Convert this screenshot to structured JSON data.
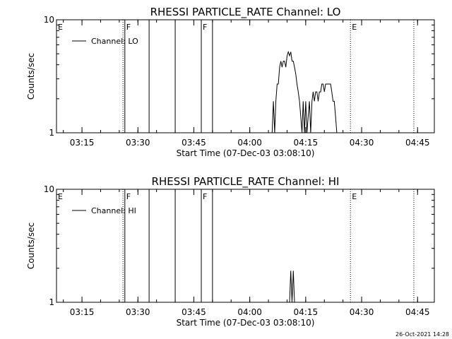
{
  "footer_timestamp": "26-Oct-2021 14:28",
  "chart_data": [
    {
      "type": "line",
      "title": "RHESSI PARTICLE_RATE Channel: LO",
      "xlabel": "Start Time (07-Dec-03 03:08:10)",
      "ylabel": "Counts/sec",
      "yscale": "log",
      "ylim": [
        1,
        10
      ],
      "yticks": [
        {
          "value": 1,
          "label": "1"
        },
        {
          "value": 10,
          "label": "10"
        }
      ],
      "xlim": [
        "03:08:10",
        "04:49:30"
      ],
      "xticks": [
        "03:15",
        "03:30",
        "03:45",
        "04:00",
        "04:15",
        "04:30",
        "04:45"
      ],
      "legend": {
        "position": "top-left",
        "entries": [
          "Channel: LO"
        ]
      },
      "markers": [
        {
          "time": "03:08:10",
          "label": "E",
          "style": "solid"
        },
        {
          "time": "03:26:00",
          "label": "",
          "style": "dotted"
        },
        {
          "time": "03:26:30",
          "label": "F",
          "style": "solid"
        },
        {
          "time": "03:33:00",
          "label": "",
          "style": "solid"
        },
        {
          "time": "03:40:00",
          "label": "",
          "style": "solid"
        },
        {
          "time": "03:47:00",
          "label": "F",
          "style": "solid"
        },
        {
          "time": "03:50:00",
          "label": "",
          "style": "solid"
        },
        {
          "time": "04:27:00",
          "label": "E",
          "style": "dotted"
        },
        {
          "time": "04:44:00",
          "label": "",
          "style": "dotted"
        }
      ],
      "series": [
        {
          "name": "Channel: LO",
          "points": [
            [
              "04:06:00",
              1
            ],
            [
              "04:06:20",
              1.9
            ],
            [
              "04:06:40",
              1
            ],
            [
              "04:07:00",
              1.9
            ],
            [
              "04:07:20",
              2.7
            ],
            [
              "04:07:40",
              2.7
            ],
            [
              "04:08:00",
              3.8
            ],
            [
              "04:08:20",
              4.3
            ],
            [
              "04:08:40",
              3.8
            ],
            [
              "04:09:00",
              4.3
            ],
            [
              "04:09:20",
              4.3
            ],
            [
              "04:09:40",
              3.8
            ],
            [
              "04:10:00",
              4.8
            ],
            [
              "04:10:20",
              5.2
            ],
            [
              "04:10:40",
              4.8
            ],
            [
              "04:11:00",
              5.2
            ],
            [
              "04:11:20",
              4.3
            ],
            [
              "04:11:40",
              4.3
            ],
            [
              "04:12:00",
              3.8
            ],
            [
              "04:12:20",
              3.3
            ],
            [
              "04:12:40",
              2.7
            ],
            [
              "04:13:00",
              2.3
            ],
            [
              "04:13:20",
              1.9
            ],
            [
              "04:13:40",
              1.4
            ],
            [
              "04:14:00",
              1
            ],
            [
              "04:14:20",
              1.9
            ],
            [
              "04:14:40",
              1
            ],
            [
              "04:15:00",
              1.9
            ],
            [
              "04:15:20",
              1
            ],
            [
              "04:15:40",
              1.4
            ],
            [
              "04:16:00",
              1.9
            ],
            [
              "04:16:20",
              1
            ],
            [
              "04:16:40",
              1.9
            ],
            [
              "04:17:00",
              2.3
            ],
            [
              "04:17:20",
              1.9
            ],
            [
              "04:17:40",
              2.3
            ],
            [
              "04:18:00",
              2.3
            ],
            [
              "04:18:20",
              1.9
            ],
            [
              "04:18:40",
              2.3
            ],
            [
              "04:19:00",
              2.3
            ],
            [
              "04:19:20",
              2.7
            ],
            [
              "04:19:40",
              2.7
            ],
            [
              "04:20:00",
              2.3
            ],
            [
              "04:20:20",
              2.7
            ],
            [
              "04:20:40",
              2.7
            ],
            [
              "04:21:00",
              2.7
            ],
            [
              "04:21:20",
              2.7
            ],
            [
              "04:21:40",
              2.7
            ],
            [
              "04:22:00",
              2.3
            ],
            [
              "04:22:20",
              1.9
            ],
            [
              "04:22:40",
              1.9
            ],
            [
              "04:23:00",
              1.4
            ],
            [
              "04:23:20",
              1
            ]
          ]
        }
      ]
    },
    {
      "type": "line",
      "title": "RHESSI PARTICLE_RATE Channel: HI",
      "xlabel": "Start Time (07-Dec-03 03:08:10)",
      "ylabel": "Counts/sec",
      "yscale": "log",
      "ylim": [
        1,
        10
      ],
      "yticks": [
        {
          "value": 1,
          "label": "1"
        },
        {
          "value": 10,
          "label": "10"
        }
      ],
      "xlim": [
        "03:08:10",
        "04:49:30"
      ],
      "xticks": [
        "03:15",
        "03:30",
        "03:45",
        "04:00",
        "04:15",
        "04:30",
        "04:45"
      ],
      "legend": {
        "position": "top-left",
        "entries": [
          "Channel: HI"
        ]
      },
      "markers": [
        {
          "time": "03:08:10",
          "label": "E",
          "style": "solid"
        },
        {
          "time": "03:26:00",
          "label": "",
          "style": "dotted"
        },
        {
          "time": "03:26:30",
          "label": "F",
          "style": "solid"
        },
        {
          "time": "03:33:00",
          "label": "",
          "style": "solid"
        },
        {
          "time": "03:40:00",
          "label": "",
          "style": "solid"
        },
        {
          "time": "03:47:00",
          "label": "F",
          "style": "solid"
        },
        {
          "time": "03:50:00",
          "label": "",
          "style": "solid"
        },
        {
          "time": "04:27:00",
          "label": "E",
          "style": "dotted"
        },
        {
          "time": "04:44:00",
          "label": "",
          "style": "dotted"
        }
      ],
      "series": [
        {
          "name": "Channel: HI",
          "points": [
            [
              "04:10:40",
              1
            ],
            [
              "04:11:00",
              1.9
            ],
            [
              "04:11:20",
              1
            ],
            [
              "04:11:40",
              1.9
            ],
            [
              "04:12:00",
              1
            ]
          ]
        }
      ]
    }
  ]
}
